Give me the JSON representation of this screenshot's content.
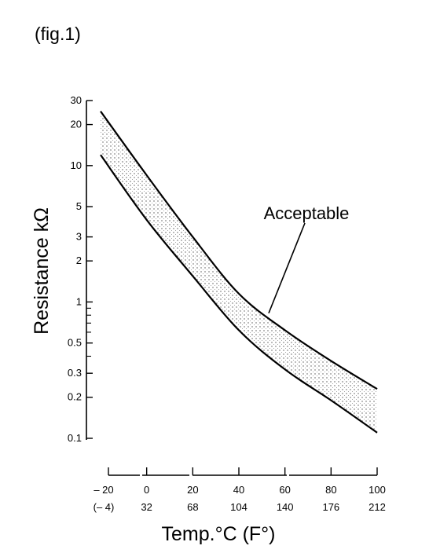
{
  "figure_label": "(fig.1)",
  "chart_data": {
    "type": "area",
    "title": "",
    "xlabel": "Temp.°C (F°)",
    "ylabel": "Resistance kΩ",
    "y_scale": "log",
    "ylim": [
      0.1,
      30
    ],
    "xlim": [
      -20,
      100
    ],
    "y_ticks": [
      0.1,
      0.2,
      0.3,
      0.5,
      1,
      2,
      3,
      5,
      10,
      20,
      30
    ],
    "y_tick_labels": [
      "0.1",
      "0.2",
      "0.3",
      "0.5",
      "1",
      "2",
      "3",
      "5",
      "10",
      "20",
      "30"
    ],
    "y_minor_ticks": [
      0.4,
      0.6,
      0.7,
      0.8,
      0.9
    ],
    "x_ticks": [
      -20,
      0,
      20,
      40,
      60,
      80,
      100
    ],
    "x_tick_labels_c": [
      "– 20",
      "0",
      "20",
      "40",
      "60",
      "80",
      "100"
    ],
    "x_tick_labels_f": [
      "(– 4)",
      "32",
      "68",
      "104",
      "140",
      "176",
      "212"
    ],
    "grid": false,
    "series": [
      {
        "role": "upper",
        "x": [
          -20,
          0,
          20,
          40,
          60,
          80,
          100
        ],
        "values": [
          25,
          8.5,
          3.0,
          1.15,
          0.62,
          0.37,
          0.23
        ]
      },
      {
        "role": "lower",
        "x": [
          -20,
          0,
          20,
          40,
          60,
          80,
          100
        ],
        "values": [
          12,
          4.0,
          1.55,
          0.62,
          0.32,
          0.19,
          0.11
        ]
      }
    ],
    "annotations": [
      {
        "text": "Acceptable",
        "target_x": 55,
        "target_y": 0.85
      }
    ]
  }
}
